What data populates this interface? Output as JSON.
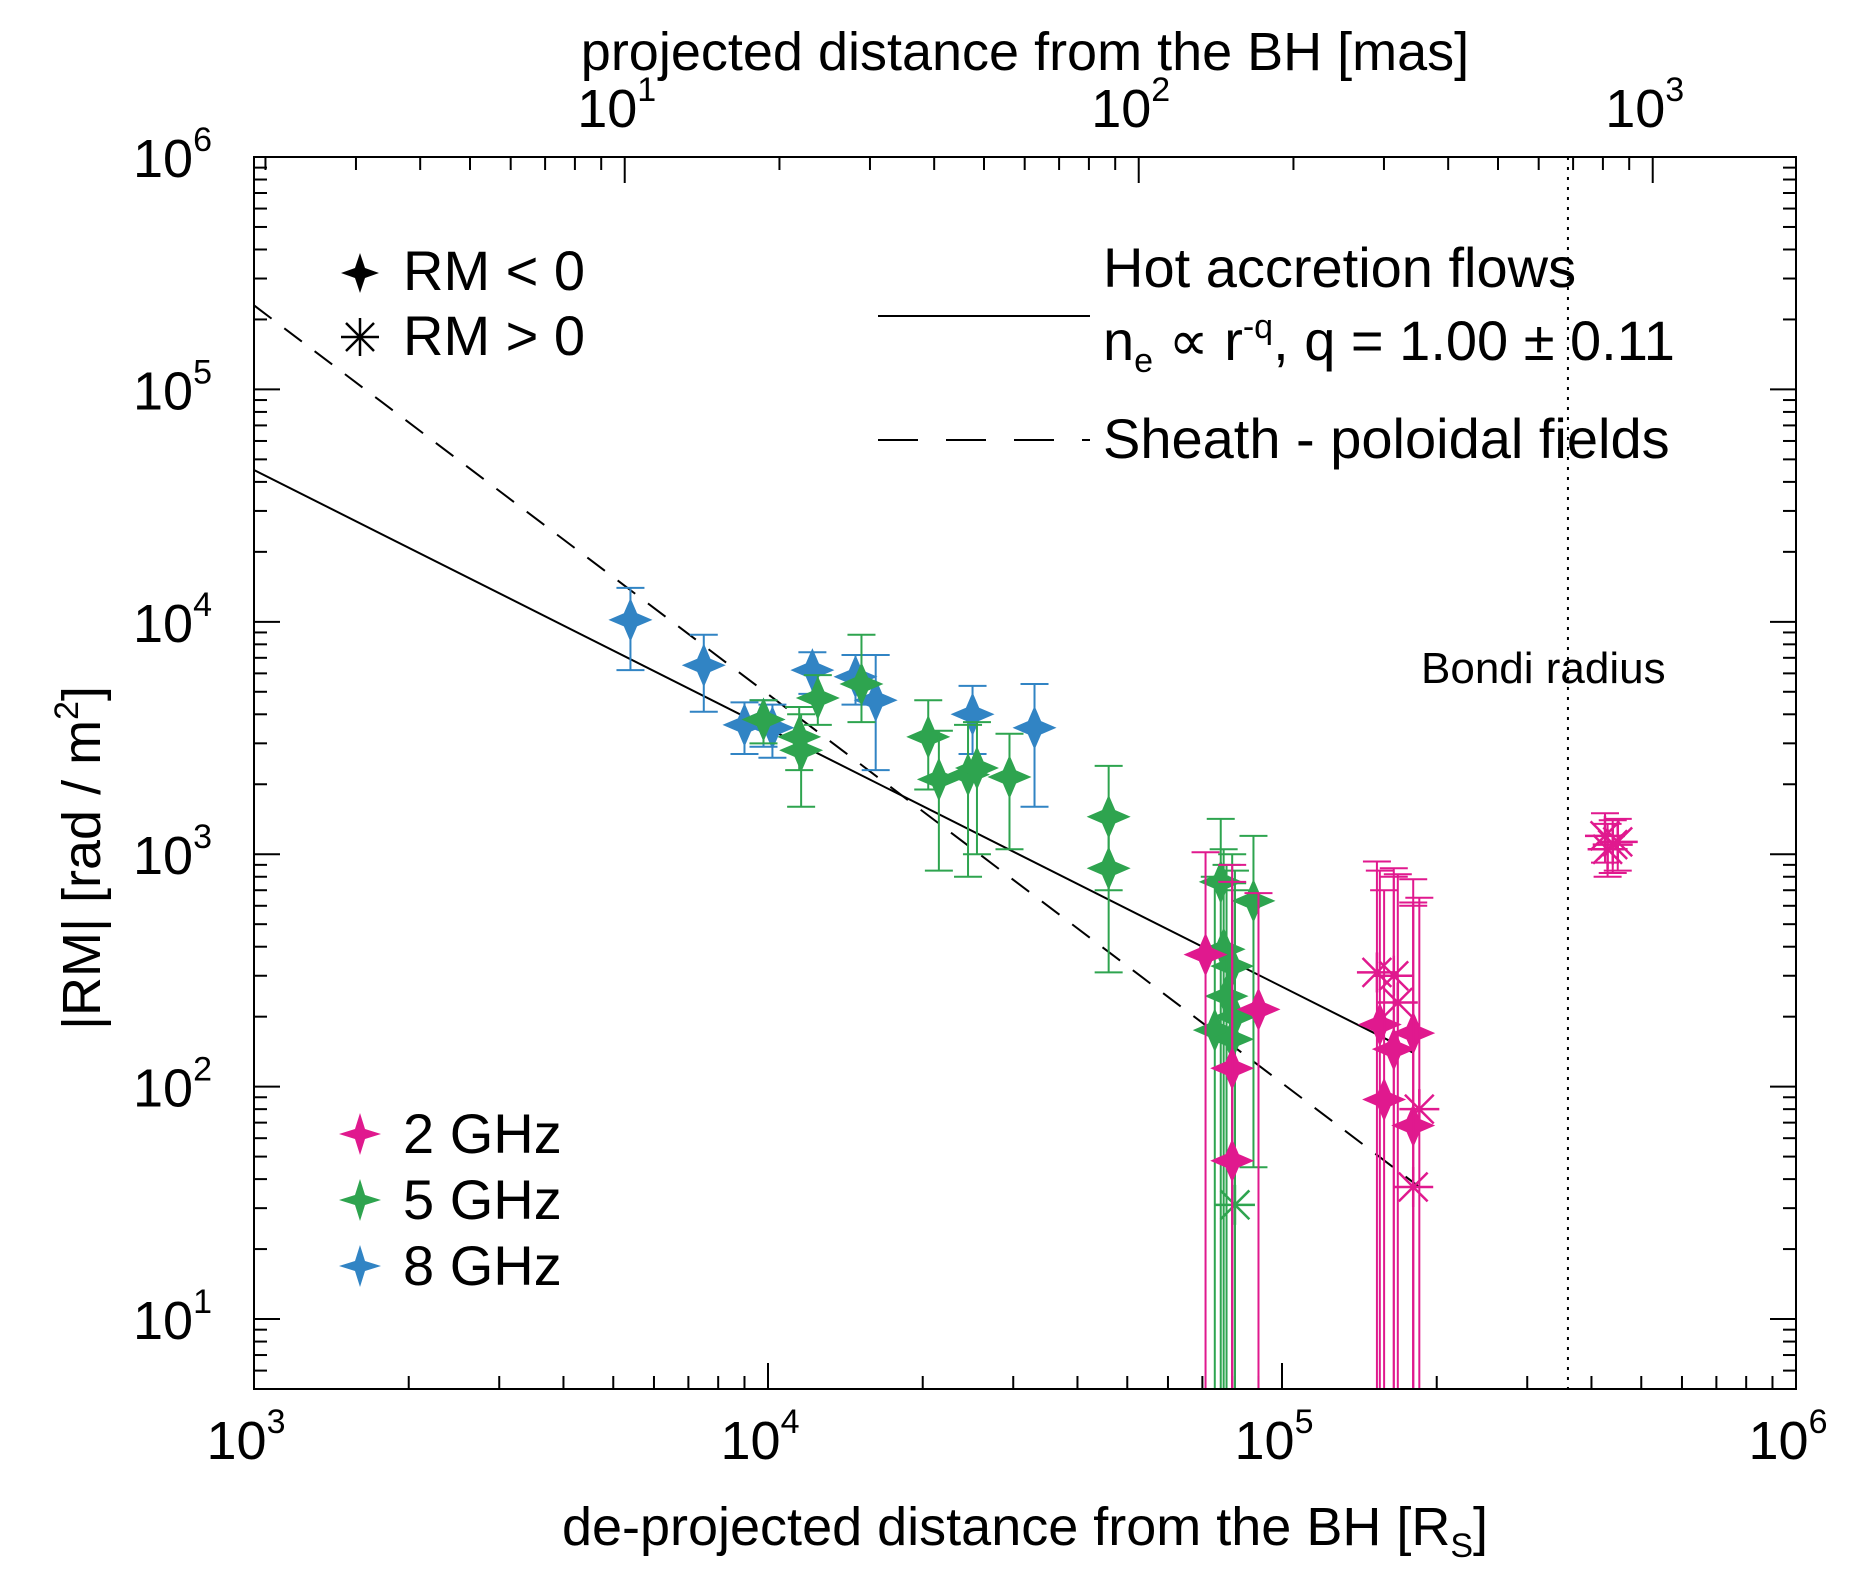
{
  "chart_data": {
    "type": "scatter",
    "title": "",
    "xlabel_bottom": {
      "text": "de-projected distance from the BH [R",
      "sub": "S",
      "close": "]"
    },
    "xlabel_top": "projected distance from the BH [mas]",
    "ylabel": {
      "text": "|RM| [rad / m",
      "sup": "2",
      "close": "]"
    },
    "xscale": "log",
    "yscale": "log",
    "xlim": [
      1000,
      1000000
    ],
    "ylim": [
      5,
      1000000
    ],
    "top_axis": {
      "mas_per_Rs": 0.0019,
      "ticks": [
        10,
        100,
        1000
      ]
    },
    "x_ticks": [
      {
        "value": 1000,
        "base": "10",
        "exp": "3"
      },
      {
        "value": 10000,
        "base": "10",
        "exp": "4"
      },
      {
        "value": 100000,
        "base": "10",
        "exp": "5"
      },
      {
        "value": 1000000,
        "base": "10",
        "exp": "6"
      }
    ],
    "y_ticks": [
      {
        "value": 10,
        "base": "10",
        "exp": "1"
      },
      {
        "value": 100,
        "base": "10",
        "exp": "2"
      },
      {
        "value": 1000,
        "base": "10",
        "exp": "3"
      },
      {
        "value": 10000,
        "base": "10",
        "exp": "4"
      },
      {
        "value": 100000,
        "base": "10",
        "exp": "5"
      },
      {
        "value": 1000000,
        "base": "10",
        "exp": "6"
      }
    ],
    "top_ticks": [
      {
        "value": 10,
        "base": "10",
        "exp": "1"
      },
      {
        "value": 100,
        "base": "10",
        "exp": "2"
      },
      {
        "value": 1000,
        "base": "10",
        "exp": "3"
      }
    ],
    "lines": {
      "hot_accretion_flow": {
        "x": [
          1000,
          180000
        ],
        "y": [
          45000,
          140
        ]
      },
      "sheath_poloidal": {
        "x": [
          1000,
          185000
        ],
        "y": [
          230000,
          37
        ]
      },
      "bondi_radius_x": 360000
    },
    "legend_symbols": {
      "title_neg": "RM < 0",
      "title_pos": "RM > 0"
    },
    "legend_freq": [
      {
        "label": "2 GHz",
        "color": "#e0198e"
      },
      {
        "label": "5 GHz",
        "color": "#2ea44f"
      },
      {
        "label": "8 GHz",
        "color": "#3184c4"
      }
    ],
    "legend_lines": {
      "hot_title": "Hot accretion flows",
      "hot_formula": "n",
      "hot_formula_sub": "e",
      "hot_formula_rest": " ∝ r",
      "hot_formula_sup": "-q",
      "hot_formula_tail": ", q =  1.00 ± 0.11",
      "sheath": "Sheath - poloidal fields"
    },
    "annotation_bondi": "Bondi radius",
    "series": [
      {
        "name": "8 GHz",
        "color": "#3184c4",
        "points": [
          {
            "x": 5400,
            "y": 10200,
            "lo": 6200,
            "hi": 14000,
            "sign": "neg"
          },
          {
            "x": 7500,
            "y": 6500,
            "lo": 4100,
            "hi": 8800,
            "sign": "neg"
          },
          {
            "x": 9000,
            "y": 3600,
            "lo": 2700,
            "hi": 4500,
            "sign": "neg"
          },
          {
            "x": 9800,
            "y": 3800,
            "lo": 2900,
            "hi": 4600,
            "sign": "neg"
          },
          {
            "x": 10200,
            "y": 3500,
            "lo": 2600,
            "hi": 4400,
            "sign": "neg"
          },
          {
            "x": 12200,
            "y": 6200,
            "lo": 4900,
            "hi": 7400,
            "sign": "neg"
          },
          {
            "x": 14800,
            "y": 5800,
            "lo": 4400,
            "hi": 7200,
            "sign": "neg"
          },
          {
            "x": 16200,
            "y": 4600,
            "lo": 2300,
            "hi": 7200,
            "sign": "neg"
          },
          {
            "x": 25000,
            "y": 4000,
            "lo": 2700,
            "hi": 5300,
            "sign": "neg"
          },
          {
            "x": 33000,
            "y": 3500,
            "lo": 1600,
            "hi": 5400,
            "sign": "neg"
          }
        ]
      },
      {
        "name": "5 GHz",
        "color": "#2ea44f",
        "points": [
          {
            "x": 9800,
            "y": 3800,
            "lo": 3000,
            "hi": 4600,
            "sign": "neg"
          },
          {
            "x": 11500,
            "y": 3200,
            "lo": 2300,
            "hi": 4300,
            "sign": "neg"
          },
          {
            "x": 11600,
            "y": 2800,
            "lo": 1600,
            "hi": 4000,
            "sign": "neg"
          },
          {
            "x": 12500,
            "y": 4700,
            "lo": 3600,
            "hi": 5900,
            "sign": "neg"
          },
          {
            "x": 15200,
            "y": 5400,
            "lo": 3700,
            "hi": 8800,
            "sign": "neg"
          },
          {
            "x": 20500,
            "y": 3200,
            "lo": 1900,
            "hi": 4600,
            "sign": "neg"
          },
          {
            "x": 21500,
            "y": 2100,
            "lo": 850,
            "hi": 3400,
            "sign": "neg"
          },
          {
            "x": 24500,
            "y": 2200,
            "lo": 800,
            "hi": 3600,
            "sign": "neg"
          },
          {
            "x": 25500,
            "y": 2350,
            "lo": 1000,
            "hi": 3700,
            "sign": "neg"
          },
          {
            "x": 29500,
            "y": 2150,
            "lo": 1050,
            "hi": 3300,
            "sign": "neg"
          },
          {
            "x": 46000,
            "y": 1450,
            "lo": 700,
            "hi": 2400,
            "sign": "neg"
          },
          {
            "x": 46000,
            "y": 870,
            "lo": 310,
            "hi": 1420,
            "sign": "neg"
          },
          {
            "x": 76000,
            "y": 760,
            "lo": 5,
            "hi": 1420,
            "sign": "neg"
          },
          {
            "x": 88000,
            "y": 630,
            "lo": 45,
            "hi": 1200,
            "sign": "neg"
          },
          {
            "x": 77000,
            "y": 390,
            "lo": 5,
            "hi": 1050,
            "sign": "neg"
          },
          {
            "x": 80000,
            "y": 330,
            "lo": 5,
            "hi": 1000,
            "sign": "neg"
          },
          {
            "x": 78000,
            "y": 245,
            "lo": 5,
            "hi": 900,
            "sign": "neg"
          },
          {
            "x": 81000,
            "y": 200,
            "lo": 5,
            "hi": 850,
            "sign": "neg"
          },
          {
            "x": 74000,
            "y": 175,
            "lo": 5,
            "hi": 800,
            "sign": "neg"
          },
          {
            "x": 80000,
            "y": 160,
            "lo": 5,
            "hi": 750,
            "sign": "neg"
          },
          {
            "x": 81000,
            "y": 31,
            "lo": 5,
            "hi": 700,
            "sign": "pos"
          }
        ]
      },
      {
        "name": "2 GHz",
        "color": "#e0198e",
        "points": [
          {
            "x": 71000,
            "y": 370,
            "lo": 5,
            "hi": 1020,
            "sign": "neg"
          },
          {
            "x": 80000,
            "y": 120,
            "lo": 5,
            "hi": 900,
            "sign": "neg"
          },
          {
            "x": 80000,
            "y": 48,
            "lo": 5,
            "hi": 760,
            "sign": "neg"
          },
          {
            "x": 90000,
            "y": 215,
            "lo": 5,
            "hi": 680,
            "sign": "neg"
          },
          {
            "x": 153000,
            "y": 310,
            "lo": 5,
            "hi": 930,
            "sign": "pos"
          },
          {
            "x": 165000,
            "y": 300,
            "lo": 5,
            "hi": 870,
            "sign": "pos"
          },
          {
            "x": 168000,
            "y": 230,
            "lo": 5,
            "hi": 820,
            "sign": "pos"
          },
          {
            "x": 155000,
            "y": 185,
            "lo": 5,
            "hi": 850,
            "sign": "neg"
          },
          {
            "x": 165000,
            "y": 145,
            "lo": 5,
            "hi": 800,
            "sign": "neg"
          },
          {
            "x": 180000,
            "y": 170,
            "lo": 5,
            "hi": 780,
            "sign": "neg"
          },
          {
            "x": 158000,
            "y": 88,
            "lo": 5,
            "hi": 700,
            "sign": "neg"
          },
          {
            "x": 185000,
            "y": 80,
            "lo": 5,
            "hi": 650,
            "sign": "pos"
          },
          {
            "x": 180000,
            "y": 68,
            "lo": 5,
            "hi": 620,
            "sign": "neg"
          },
          {
            "x": 180000,
            "y": 37,
            "lo": 5,
            "hi": 600,
            "sign": "pos"
          },
          {
            "x": 425000,
            "y": 1200,
            "lo": 920,
            "hi": 1500,
            "sign": "pos"
          },
          {
            "x": 440000,
            "y": 1100,
            "lo": 830,
            "hi": 1400,
            "sign": "pos"
          },
          {
            "x": 450000,
            "y": 1130,
            "lo": 850,
            "hi": 1420,
            "sign": "pos"
          },
          {
            "x": 430000,
            "y": 1050,
            "lo": 800,
            "hi": 1350,
            "sign": "pos"
          }
        ]
      }
    ]
  }
}
